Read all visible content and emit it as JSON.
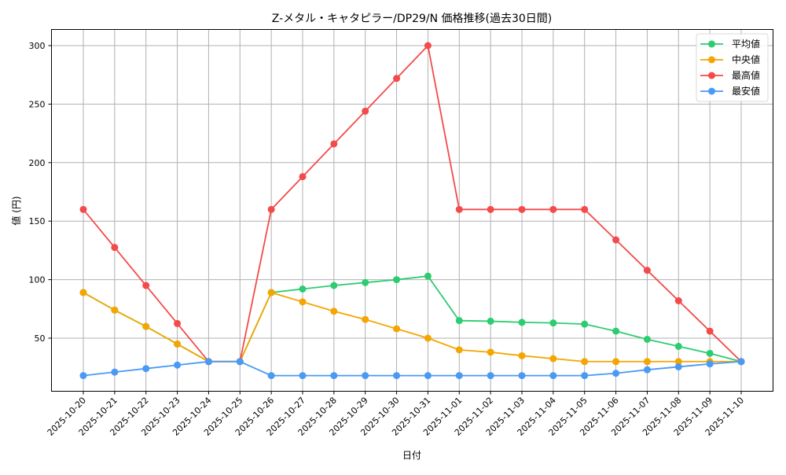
{
  "chart_data": {
    "type": "line",
    "title": "Z-メタル・キャタピラー/DP29/N 価格推移(過去30日間)",
    "xlabel": "日付",
    "ylabel": "値 (円)",
    "ylim": [
      7,
      315
    ],
    "yticks": [
      50,
      100,
      150,
      200,
      250,
      300
    ],
    "grid": true,
    "legend_position": "upper right",
    "categories": [
      "2025-10-20",
      "2025-10-21",
      "2025-10-22",
      "2025-10-23",
      "2025-10-24",
      "2025-10-25",
      "2025-10-26",
      "2025-10-27",
      "2025-10-28",
      "2025-10-29",
      "2025-10-30",
      "2025-10-31",
      "2025-11-01",
      "2025-11-02",
      "2025-11-03",
      "2025-11-04",
      "2025-11-05",
      "2025-11-06",
      "2025-11-07",
      "2025-11-08",
      "2025-11-09",
      "2025-11-10"
    ],
    "series": [
      {
        "name": "平均値",
        "color": "#2ecc71",
        "values": [
          89,
          74,
          60,
          45,
          30,
          30,
          89,
          92,
          95,
          97.5,
          100,
          103,
          65,
          64.5,
          63.5,
          63,
          62,
          56,
          49,
          43,
          37,
          30
        ]
      },
      {
        "name": "中央値",
        "color": "#f5a500",
        "values": [
          89,
          74,
          60,
          45,
          30,
          30,
          89,
          81,
          73,
          66,
          58,
          50,
          40,
          38,
          35,
          32.5,
          30,
          30,
          30,
          30,
          30,
          30
        ]
      },
      {
        "name": "最高値",
        "color": "#f44a4a",
        "values": [
          160,
          127.5,
          95,
          62.5,
          30,
          30,
          160,
          188,
          216,
          244,
          272,
          300,
          160,
          160,
          160,
          160,
          160,
          134,
          108,
          82,
          56,
          30
        ]
      },
      {
        "name": "最安値",
        "color": "#4a9af5",
        "values": [
          18,
          21,
          24,
          27,
          30,
          30,
          18,
          18,
          18,
          18,
          18,
          18,
          18,
          18,
          18,
          18,
          18,
          20,
          23,
          25.5,
          28,
          30
        ]
      }
    ]
  }
}
